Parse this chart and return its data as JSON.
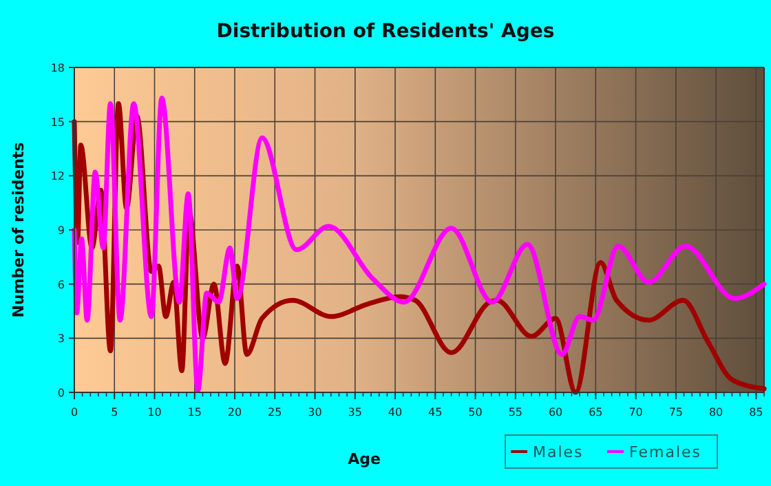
{
  "chart_data": {
    "type": "line",
    "title": "Distribution of Residents' Ages",
    "xlabel": "Age",
    "ylabel": "Number of residents",
    "xlim": [
      0,
      86
    ],
    "xticks": [
      0,
      5,
      10,
      15,
      20,
      25,
      30,
      35,
      40,
      45,
      50,
      55,
      60,
      65,
      70,
      75,
      80,
      85
    ],
    "ylim": [
      0,
      18
    ],
    "yticks": [
      0,
      3,
      6,
      9,
      12,
      15,
      18
    ],
    "grid": true,
    "legend": "bottom right",
    "line_style": "solid",
    "marker": "none",
    "series": [
      {
        "name": "Males",
        "color": "#a00000",
        "x": [
          0,
          0.4,
          0.8,
          2.2,
          3.3,
          4.5,
          5.5,
          6.5,
          7.8,
          9.6,
          10.5,
          11.4,
          12.4,
          13.4,
          14.3,
          16,
          17.4,
          18.8,
          20.3,
          21.5,
          23.4,
          27.2,
          32,
          36.6,
          40.6,
          42.5,
          47,
          51.8,
          52.7,
          57,
          60,
          62.5,
          65.6,
          67.6,
          71.6,
          75.9,
          79,
          82,
          86
        ],
        "values": [
          15,
          8.3,
          13.7,
          8,
          11.2,
          2.3,
          16,
          10.2,
          15.3,
          6.7,
          7,
          4.2,
          6.1,
          1.2,
          10,
          3,
          6,
          1.6,
          7,
          2.1,
          4.1,
          5.1,
          4.2,
          4.9,
          5.3,
          5.1,
          2.2,
          5,
          5.1,
          3.1,
          4.1,
          0,
          7.2,
          5.1,
          4,
          5.1,
          2.8,
          0.7,
          0.2
        ]
      },
      {
        "name": "Females",
        "color": "#ff00ff",
        "x": [
          0,
          0.3,
          0.9,
          1.6,
          2.6,
          3.6,
          4.5,
          5.7,
          7.4,
          9.6,
          10.9,
          13.1,
          14.2,
          15.4,
          16.5,
          18,
          19.4,
          20.3,
          23.4,
          27.7,
          31.7,
          37.2,
          41.1,
          47,
          52.1,
          56.5,
          60.8,
          63,
          64.7,
          67.8,
          71.6,
          76.2,
          82.3,
          86
        ],
        "values": [
          9,
          4.4,
          8.5,
          4,
          12.2,
          8,
          16,
          4,
          16,
          4.2,
          16.3,
          5,
          11,
          0.1,
          5.5,
          5,
          8,
          5.2,
          14.1,
          7.9,
          9.2,
          6.3,
          5,
          9.1,
          5,
          8.2,
          2.1,
          4.2,
          4,
          8.1,
          6.1,
          8.1,
          5.2,
          6
        ]
      }
    ]
  }
}
